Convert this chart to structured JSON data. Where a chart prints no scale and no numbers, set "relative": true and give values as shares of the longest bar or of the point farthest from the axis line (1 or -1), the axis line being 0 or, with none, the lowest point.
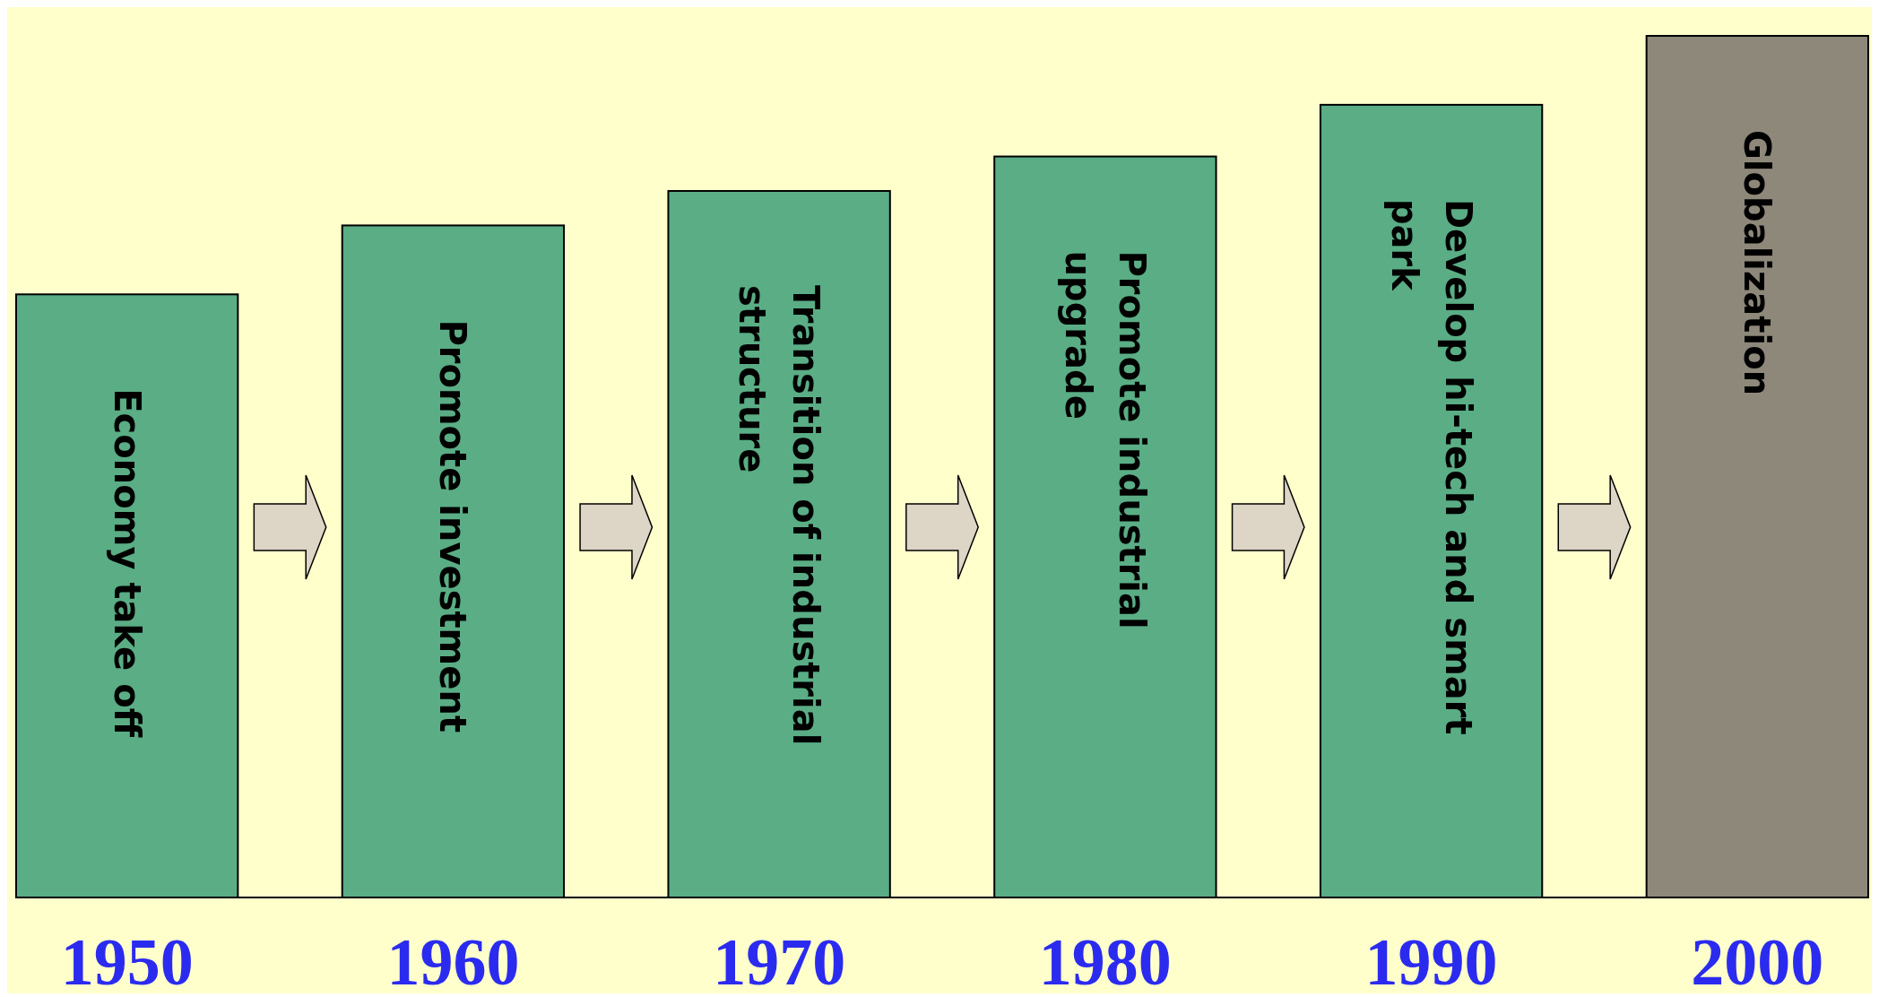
{
  "chart_data": {
    "type": "bar",
    "relative": true,
    "categories": [
      "1950",
      "1960",
      "1970",
      "1980",
      "1990",
      "2000"
    ],
    "values": [
      0.7,
      0.78,
      0.82,
      0.86,
      0.92,
      1
    ],
    "colors": [
      "#5aad85",
      "#5aad85",
      "#5aad85",
      "#5aad85",
      "#5aad85",
      "#8e887a"
    ],
    "annotations": [
      "Economy take off",
      "Promote investment",
      "Transition of industrial structure",
      "Promote industrial upgrade",
      "Develop hi-tech and smart park",
      "Globalization"
    ]
  }
}
